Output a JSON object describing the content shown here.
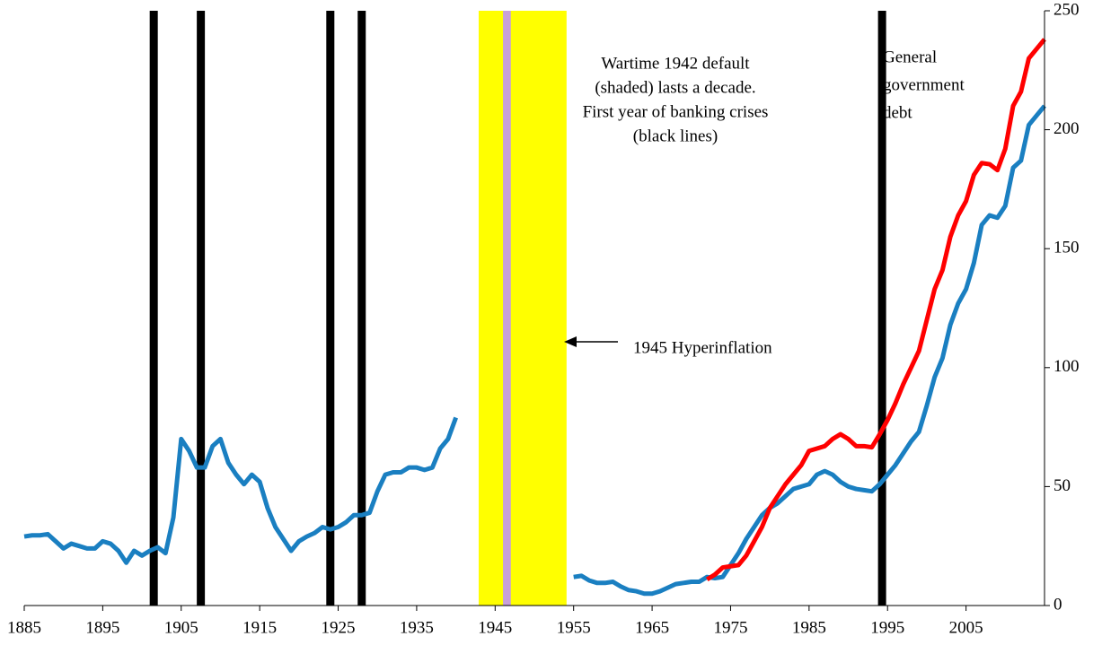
{
  "chart_data": {
    "type": "line",
    "xlim": [
      1885,
      2015
    ],
    "xticks": [
      1885,
      1895,
      1905,
      1915,
      1925,
      1935,
      1945,
      1955,
      1965,
      1975,
      1985,
      1995,
      2005
    ],
    "ylim": [
      0,
      250
    ],
    "yticks": [
      0,
      50,
      100,
      150,
      200,
      250
    ],
    "x": [
      1885,
      1886,
      1887,
      1888,
      1889,
      1890,
      1891,
      1892,
      1893,
      1894,
      1895,
      1896,
      1897,
      1898,
      1899,
      1900,
      1901,
      1902,
      1903,
      1904,
      1905,
      1906,
      1907,
      1908,
      1909,
      1910,
      1911,
      1912,
      1913,
      1914,
      1915,
      1916,
      1917,
      1918,
      1919,
      1920,
      1921,
      1922,
      1923,
      1924,
      1925,
      1926,
      1927,
      1928,
      1929,
      1930,
      1931,
      1932,
      1933,
      1934,
      1935,
      1936,
      1937,
      1938,
      1939,
      1940,
      1941,
      1942,
      1943,
      1944,
      1945,
      1946,
      1947,
      1948,
      1949,
      1950,
      1951,
      1952,
      1953,
      1954,
      1955,
      1956,
      1957,
      1958,
      1959,
      1960,
      1961,
      1962,
      1963,
      1964,
      1965,
      1966,
      1967,
      1968,
      1969,
      1970,
      1971,
      1972,
      1973,
      1974,
      1975,
      1976,
      1977,
      1978,
      1979,
      1980,
      1981,
      1982,
      1983,
      1984,
      1985,
      1986,
      1987,
      1988,
      1989,
      1990,
      1991,
      1992,
      1993,
      1994,
      1995,
      1996,
      1997,
      1998,
      1999,
      2000,
      2001,
      2002,
      2003,
      2004,
      2005,
      2006,
      2007,
      2008,
      2009,
      2010,
      2011,
      2012,
      2013,
      2014,
      2015
    ],
    "series": [
      {
        "color": "#1a7fc1",
        "values": [
          29,
          29.5,
          29.5,
          30,
          27,
          24,
          26,
          25,
          24,
          24,
          27,
          26,
          23,
          18,
          23,
          21,
          23,
          24.5,
          22,
          37,
          70,
          65,
          58,
          58,
          67,
          70,
          60,
          55,
          51,
          55,
          52,
          41,
          33,
          28,
          23,
          27,
          29,
          30.5,
          33,
          32,
          33,
          35,
          38,
          38,
          39,
          48,
          55,
          56,
          56,
          58,
          58,
          57,
          58,
          66,
          70,
          79,
          null,
          null,
          null,
          null,
          null,
          null,
          null,
          null,
          null,
          null,
          null,
          null,
          null,
          null,
          12,
          12.5,
          10.5,
          9.5,
          9.5,
          10,
          8,
          6.5,
          6,
          5,
          5,
          6,
          7.5,
          9,
          9.5,
          10,
          10,
          12,
          11.5,
          12,
          17,
          22,
          28,
          33,
          38,
          41,
          43,
          46,
          49,
          50,
          51,
          55,
          56.5,
          55,
          52,
          50,
          49,
          48.5,
          48,
          51,
          55,
          59,
          64,
          69,
          73,
          84,
          96,
          104,
          118,
          127,
          133,
          144,
          160,
          164,
          163,
          168,
          184,
          187,
          202,
          206,
          210
        ]
      },
      {
        "color": "#ff0000",
        "x": [
          1972,
          1973,
          1974,
          1975,
          1976,
          1977,
          1978,
          1979,
          1980,
          1981,
          1982,
          1983,
          1984,
          1985,
          1986,
          1987,
          1988,
          1989,
          1990,
          1991,
          1992,
          1993,
          1994,
          1995,
          1996,
          1997,
          1998,
          1999,
          2000,
          2001,
          2002,
          2003,
          2004,
          2005,
          2006,
          2007,
          2008,
          2009,
          2010,
          2011,
          2012,
          2013,
          2014,
          2015
        ],
        "values": [
          11,
          13,
          16,
          16.5,
          17,
          21,
          27,
          33,
          41,
          46,
          51,
          55,
          59,
          65,
          66,
          67,
          70,
          72,
          70,
          67,
          67,
          66.5,
          72,
          78,
          85,
          93,
          100,
          107,
          120,
          133,
          141,
          155,
          164,
          170,
          181,
          186,
          185.5,
          183,
          192,
          210,
          216,
          230,
          234,
          238
        ]
      }
    ],
    "crisis_lines": {
      "color": "#000000",
      "x": [
        1901.5,
        1907.5,
        1924,
        1928,
        1994.3
      ]
    },
    "default_span": {
      "color": "#ffff00",
      "start": 1942.9,
      "end": 1954.1
    },
    "hyperinflation_span": {
      "color": "#c8a0d8",
      "start": 1946,
      "end": 1947
    },
    "annotations": {
      "default_note": [
        "Wartime 1942 default",
        "(shaded) lasts a decade.",
        "First year of banking crises",
        "(black lines)"
      ],
      "hyperinflation_note": "1945 Hyperinflation",
      "series_note": [
        "General",
        "government",
        "debt"
      ]
    }
  }
}
